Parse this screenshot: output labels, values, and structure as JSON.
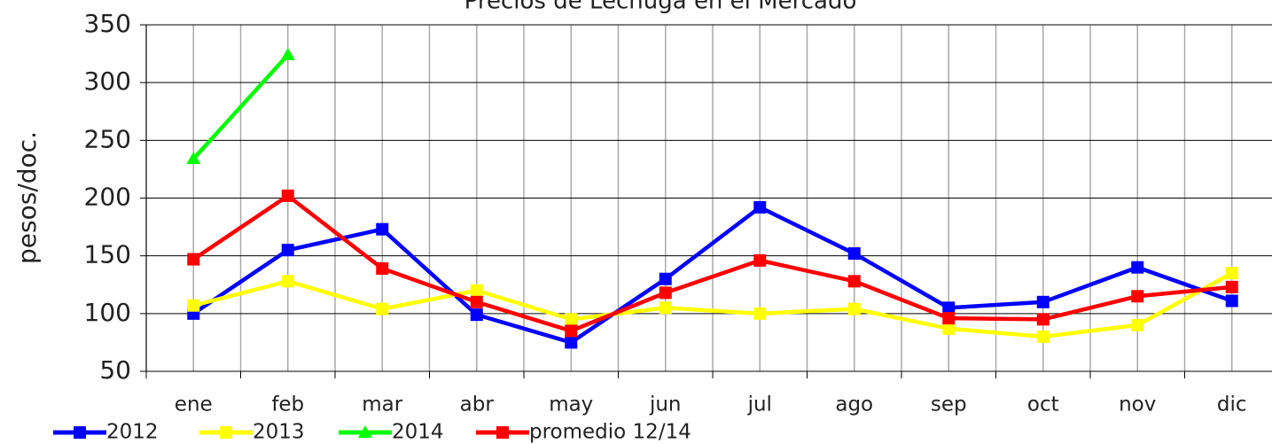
{
  "chart_data": {
    "type": "line",
    "title": "Precios de Lechuga en el Mercado",
    "ylabel": "pesos/doc.",
    "categories": [
      "ene",
      "feb",
      "mar",
      "abr",
      "may",
      "jun",
      "jul",
      "ago",
      "sep",
      "oct",
      "nov",
      "dic"
    ],
    "series": [
      {
        "name": "2012",
        "color": "#0000ff",
        "marker": "square",
        "values": [
          100,
          155,
          173,
          99,
          75,
          130,
          192,
          152,
          105,
          110,
          140,
          111
        ]
      },
      {
        "name": "2013",
        "color": "#ffff00",
        "marker": "square",
        "values": [
          107,
          128,
          104,
          120,
          95,
          105,
          100,
          104,
          87,
          80,
          90,
          135
        ]
      },
      {
        "name": "2014",
        "color": "#00ff00",
        "marker": "triangle",
        "values": [
          234,
          324,
          null,
          null,
          null,
          null,
          null,
          null,
          null,
          null,
          null,
          null
        ]
      },
      {
        "name": "promedio 12/14",
        "color": "#ff0000",
        "marker": "square",
        "values": [
          147,
          202,
          139,
          110,
          85,
          118,
          146,
          128,
          96,
          95,
          115,
          123
        ]
      }
    ],
    "ylim": [
      50,
      350
    ],
    "yticks": [
      50,
      100,
      150,
      200,
      250,
      300,
      350
    ],
    "grid": true,
    "legend": "bottom"
  }
}
